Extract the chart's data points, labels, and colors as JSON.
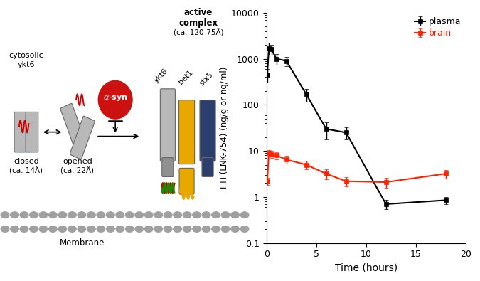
{
  "plasma_x": [
    0.083,
    0.25,
    0.5,
    1.0,
    2.0,
    4.0,
    6.0,
    8.0,
    12.0,
    18.0
  ],
  "plasma_y": [
    450,
    1700,
    1600,
    1000,
    900,
    170,
    30,
    25,
    0.7,
    0.85
  ],
  "plasma_yerr_lo": [
    150,
    500,
    400,
    250,
    200,
    55,
    12,
    7,
    0.15,
    0.15
  ],
  "plasma_yerr_hi": [
    150,
    500,
    400,
    250,
    200,
    55,
    12,
    7,
    0.15,
    0.15
  ],
  "brain_x": [
    0.083,
    0.25,
    0.5,
    1.0,
    2.0,
    4.0,
    6.0,
    8.0,
    12.0,
    18.0
  ],
  "brain_y": [
    2.2,
    9.0,
    8.5,
    8.0,
    6.5,
    5.0,
    3.2,
    2.2,
    2.1,
    3.2
  ],
  "brain_yerr_lo": [
    0.4,
    1.5,
    1.5,
    1.5,
    1.2,
    1.0,
    0.8,
    0.5,
    0.5,
    0.7
  ],
  "brain_yerr_hi": [
    0.4,
    1.5,
    1.5,
    1.5,
    1.2,
    1.0,
    0.8,
    0.5,
    0.5,
    0.7
  ],
  "plasma_color": "#000000",
  "brain_color": "#ff2200",
  "ylabel": "FTI (LNK-754) (ng/g or ng/ml)",
  "xlabel": "Time (hours)",
  "ylim_lo": 0.1,
  "ylim_hi": 10000,
  "xlim_lo": 0,
  "xlim_hi": 20,
  "xticks": [
    0,
    5,
    10,
    15,
    20
  ],
  "legend_plasma": "plasma",
  "legend_brain": "brain",
  "bg_color": "#ffffff",
  "cyl_gray": "#b8b8b8",
  "cyl_gray_dark": "#909090",
  "cyl_yellow": "#e8a800",
  "cyl_blue": "#2c3e6b",
  "alpha_syn_color": "#cc1111",
  "membrane_color": "#a0a0a0"
}
